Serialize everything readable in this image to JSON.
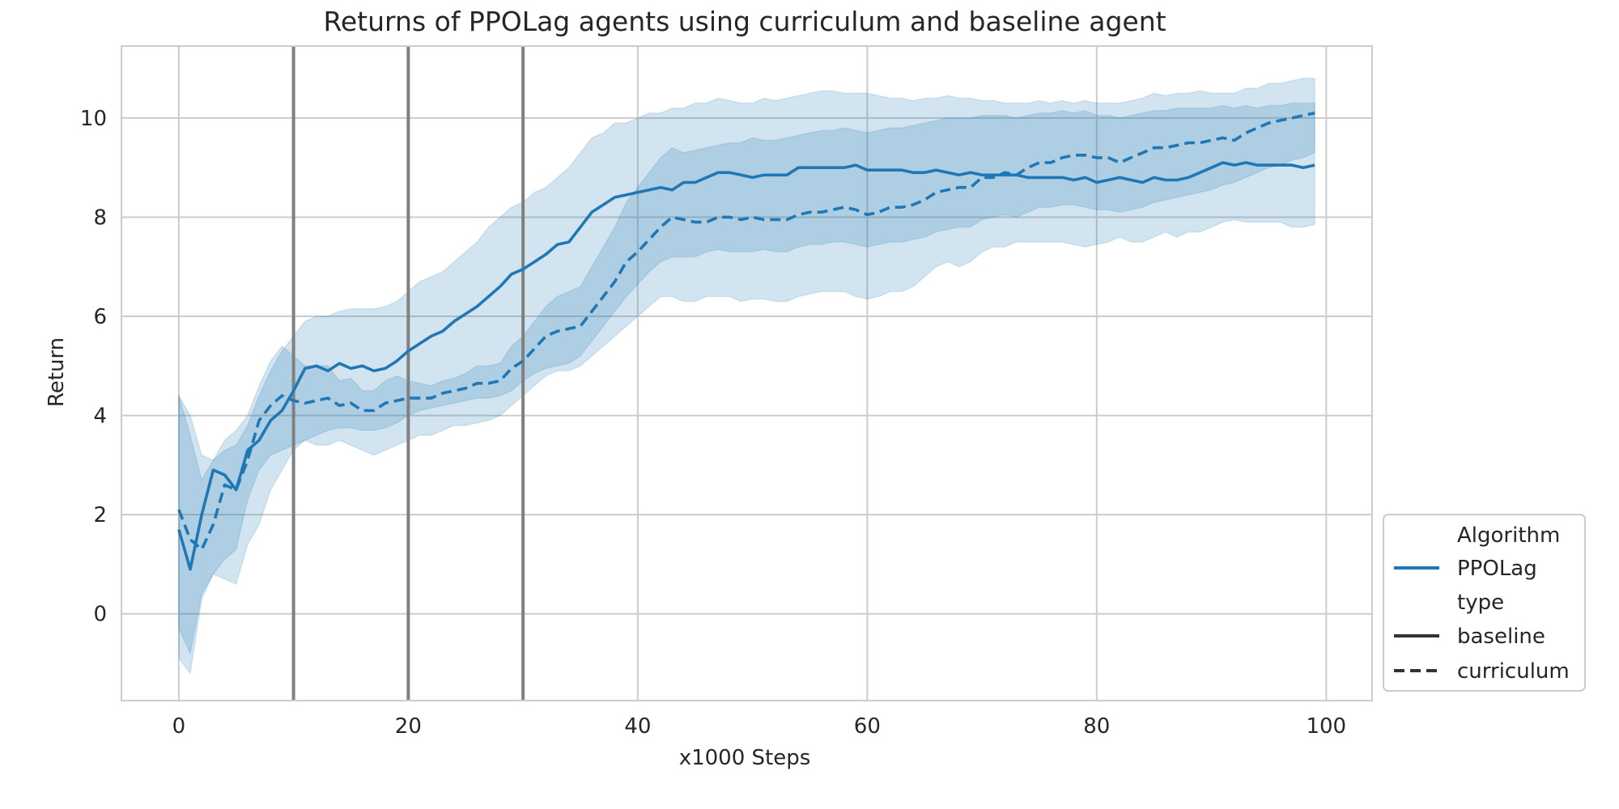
{
  "chart_data": {
    "type": "line",
    "title": "Returns of PPOLag agents using curriculum and baseline agent",
    "xlabel": "x1000 Steps",
    "ylabel": "Return",
    "xlim": [
      -5,
      104
    ],
    "ylim": [
      -1.75,
      11.45
    ],
    "xticks": [
      0,
      20,
      40,
      60,
      80,
      100
    ],
    "yticks": [
      0,
      2,
      4,
      6,
      8,
      10
    ],
    "grid": true,
    "vlines": [
      10,
      20,
      30
    ],
    "legend": {
      "position": "lower-right-outside",
      "entries": [
        {
          "label": "Algorithm",
          "style": "header"
        },
        {
          "label": "PPOLag",
          "style": "color",
          "color": "#1f77b4"
        },
        {
          "label": "type",
          "style": "header"
        },
        {
          "label": "baseline",
          "style": "solid",
          "color": "#333333"
        },
        {
          "label": "curriculum",
          "style": "dashed",
          "color": "#333333"
        }
      ]
    },
    "colors": {
      "line": "#1f77b4",
      "band": "#1f77b4",
      "vline": "#808080",
      "grid": "#cccccc"
    },
    "series": [
      {
        "name": "baseline",
        "dash": "solid",
        "x": [
          0,
          1,
          2,
          3,
          4,
          5,
          6,
          7,
          8,
          9,
          10,
          11,
          12,
          13,
          14,
          15,
          16,
          17,
          18,
          19,
          20,
          21,
          22,
          23,
          24,
          25,
          26,
          27,
          28,
          29,
          30,
          31,
          32,
          33,
          34,
          35,
          36,
          37,
          38,
          39,
          40,
          41,
          42,
          43,
          44,
          45,
          46,
          47,
          48,
          49,
          50,
          51,
          52,
          53,
          54,
          55,
          56,
          57,
          58,
          59,
          60,
          61,
          62,
          63,
          64,
          65,
          66,
          67,
          68,
          69,
          70,
          71,
          72,
          73,
          74,
          75,
          76,
          77,
          78,
          79,
          80,
          81,
          82,
          83,
          84,
          85,
          86,
          87,
          88,
          89,
          90,
          91,
          92,
          93,
          94,
          95,
          96,
          97,
          98,
          99
        ],
        "y": [
          1.7,
          0.9,
          2.0,
          2.9,
          2.8,
          2.5,
          3.3,
          3.5,
          3.9,
          4.1,
          4.5,
          4.95,
          5.0,
          4.9,
          5.05,
          4.95,
          5.0,
          4.9,
          4.95,
          5.1,
          5.3,
          5.45,
          5.6,
          5.7,
          5.9,
          6.05,
          6.2,
          6.4,
          6.6,
          6.85,
          6.95,
          7.1,
          7.25,
          7.45,
          7.5,
          7.8,
          8.1,
          8.25,
          8.4,
          8.45,
          8.5,
          8.55,
          8.6,
          8.55,
          8.7,
          8.7,
          8.8,
          8.9,
          8.9,
          8.85,
          8.8,
          8.85,
          8.85,
          8.85,
          9.0,
          9.0,
          9.0,
          9.0,
          9.0,
          9.05,
          8.95,
          8.95,
          8.95,
          8.95,
          8.9,
          8.9,
          8.95,
          8.9,
          8.85,
          8.9,
          8.85,
          8.85,
          8.85,
          8.85,
          8.8,
          8.8,
          8.8,
          8.8,
          8.75,
          8.8,
          8.7,
          8.75,
          8.8,
          8.75,
          8.7,
          8.8,
          8.75,
          8.75,
          8.8,
          8.9,
          9.0,
          9.1,
          9.05,
          9.1,
          9.05,
          9.05,
          9.05,
          9.05,
          9.0,
          9.05
        ],
        "lower": [
          -0.9,
          -1.2,
          0.3,
          0.8,
          0.7,
          0.6,
          1.4,
          1.8,
          2.5,
          2.9,
          3.3,
          3.5,
          3.4,
          3.4,
          3.5,
          3.4,
          3.3,
          3.2,
          3.3,
          3.4,
          3.5,
          3.6,
          3.6,
          3.7,
          3.8,
          3.8,
          3.85,
          3.9,
          4.0,
          4.2,
          4.4,
          4.6,
          4.8,
          4.9,
          4.9,
          5.0,
          5.2,
          5.4,
          5.6,
          5.8,
          6.0,
          6.2,
          6.4,
          6.4,
          6.3,
          6.3,
          6.4,
          6.4,
          6.4,
          6.3,
          6.35,
          6.35,
          6.3,
          6.3,
          6.4,
          6.45,
          6.5,
          6.5,
          6.5,
          6.4,
          6.35,
          6.4,
          6.5,
          6.5,
          6.6,
          6.8,
          7.0,
          7.1,
          7.0,
          7.1,
          7.3,
          7.4,
          7.4,
          7.5,
          7.5,
          7.5,
          7.5,
          7.5,
          7.45,
          7.4,
          7.45,
          7.5,
          7.6,
          7.5,
          7.5,
          7.6,
          7.7,
          7.6,
          7.7,
          7.7,
          7.8,
          7.9,
          7.95,
          7.9,
          7.9,
          7.9,
          7.9,
          7.8,
          7.8,
          7.85
        ],
        "upper": [
          4.4,
          4.0,
          3.2,
          3.1,
          3.3,
          3.4,
          3.8,
          4.4,
          4.9,
          5.3,
          5.6,
          5.9,
          6.0,
          6.0,
          6.1,
          6.15,
          6.15,
          6.15,
          6.2,
          6.3,
          6.5,
          6.7,
          6.8,
          6.9,
          7.1,
          7.3,
          7.5,
          7.8,
          8.0,
          8.2,
          8.3,
          8.5,
          8.6,
          8.8,
          9.0,
          9.3,
          9.6,
          9.7,
          9.9,
          9.9,
          10.0,
          10.1,
          10.1,
          10.2,
          10.2,
          10.3,
          10.3,
          10.4,
          10.35,
          10.3,
          10.3,
          10.4,
          10.35,
          10.4,
          10.45,
          10.5,
          10.55,
          10.55,
          10.5,
          10.5,
          10.5,
          10.45,
          10.4,
          10.4,
          10.35,
          10.4,
          10.4,
          10.45,
          10.4,
          10.4,
          10.35,
          10.35,
          10.3,
          10.3,
          10.3,
          10.35,
          10.3,
          10.35,
          10.3,
          10.35,
          10.3,
          10.3,
          10.3,
          10.35,
          10.4,
          10.5,
          10.45,
          10.5,
          10.5,
          10.55,
          10.5,
          10.5,
          10.5,
          10.6,
          10.6,
          10.7,
          10.7,
          10.75,
          10.8,
          10.8
        ]
      },
      {
        "name": "curriculum",
        "dash": "dashed",
        "x": [
          0,
          1,
          2,
          3,
          4,
          5,
          6,
          7,
          8,
          9,
          10,
          11,
          12,
          13,
          14,
          15,
          16,
          17,
          18,
          19,
          20,
          21,
          22,
          23,
          24,
          25,
          26,
          27,
          28,
          29,
          30,
          31,
          32,
          33,
          34,
          35,
          36,
          37,
          38,
          39,
          40,
          41,
          42,
          43,
          44,
          45,
          46,
          47,
          48,
          49,
          50,
          51,
          52,
          53,
          54,
          55,
          56,
          57,
          58,
          59,
          60,
          61,
          62,
          63,
          64,
          65,
          66,
          67,
          68,
          69,
          70,
          71,
          72,
          73,
          74,
          75,
          76,
          77,
          78,
          79,
          80,
          81,
          82,
          83,
          84,
          85,
          86,
          87,
          88,
          89,
          90,
          91,
          92,
          93,
          94,
          95,
          96,
          97,
          98,
          99
        ],
        "y": [
          2.1,
          1.5,
          1.3,
          1.8,
          2.6,
          2.5,
          3.1,
          3.9,
          4.2,
          4.4,
          4.3,
          4.25,
          4.3,
          4.35,
          4.2,
          4.25,
          4.1,
          4.1,
          4.25,
          4.3,
          4.35,
          4.35,
          4.35,
          4.45,
          4.5,
          4.55,
          4.65,
          4.65,
          4.7,
          4.95,
          5.1,
          5.35,
          5.6,
          5.7,
          5.75,
          5.8,
          6.1,
          6.4,
          6.7,
          7.1,
          7.3,
          7.55,
          7.8,
          8.0,
          7.95,
          7.9,
          7.9,
          8.0,
          8.0,
          7.95,
          8.0,
          7.95,
          7.95,
          7.95,
          8.05,
          8.1,
          8.1,
          8.15,
          8.2,
          8.15,
          8.05,
          8.1,
          8.2,
          8.2,
          8.25,
          8.35,
          8.5,
          8.55,
          8.6,
          8.6,
          8.8,
          8.8,
          8.9,
          8.85,
          9.0,
          9.1,
          9.1,
          9.2,
          9.25,
          9.25,
          9.2,
          9.2,
          9.1,
          9.2,
          9.3,
          9.4,
          9.4,
          9.45,
          9.5,
          9.5,
          9.55,
          9.6,
          9.55,
          9.7,
          9.8,
          9.9,
          9.95,
          10.0,
          10.05,
          10.1
        ],
        "lower": [
          -0.3,
          -0.8,
          0.4,
          0.8,
          1.1,
          1.3,
          2.3,
          2.9,
          3.2,
          3.3,
          3.4,
          3.5,
          3.6,
          3.7,
          3.75,
          3.75,
          3.7,
          3.7,
          3.75,
          3.85,
          4.0,
          4.1,
          4.15,
          4.2,
          4.25,
          4.3,
          4.35,
          4.35,
          4.4,
          4.5,
          4.7,
          4.85,
          4.95,
          5.0,
          5.05,
          5.2,
          5.5,
          5.8,
          6.1,
          6.4,
          6.65,
          6.9,
          7.1,
          7.2,
          7.2,
          7.2,
          7.3,
          7.35,
          7.3,
          7.3,
          7.3,
          7.35,
          7.3,
          7.3,
          7.4,
          7.45,
          7.45,
          7.5,
          7.5,
          7.45,
          7.4,
          7.45,
          7.5,
          7.5,
          7.55,
          7.6,
          7.7,
          7.75,
          7.8,
          7.8,
          7.95,
          8.0,
          8.05,
          8.0,
          8.1,
          8.2,
          8.2,
          8.25,
          8.25,
          8.2,
          8.15,
          8.15,
          8.1,
          8.15,
          8.2,
          8.3,
          8.35,
          8.4,
          8.45,
          8.5,
          8.55,
          8.65,
          8.7,
          8.8,
          8.9,
          9.0,
          9.05,
          9.15,
          9.2,
          9.3
        ],
        "upper": [
          4.4,
          3.6,
          2.7,
          3.1,
          3.5,
          3.7,
          4.0,
          4.6,
          5.1,
          5.4,
          5.2,
          5.0,
          5.0,
          5.0,
          4.7,
          4.75,
          4.5,
          4.5,
          4.7,
          4.8,
          4.7,
          4.65,
          4.6,
          4.7,
          4.75,
          4.85,
          5.0,
          5.0,
          5.05,
          5.4,
          5.6,
          5.9,
          6.2,
          6.4,
          6.5,
          6.6,
          7.0,
          7.4,
          7.8,
          8.3,
          8.6,
          8.9,
          9.2,
          9.4,
          9.3,
          9.35,
          9.4,
          9.45,
          9.5,
          9.5,
          9.6,
          9.55,
          9.55,
          9.6,
          9.65,
          9.7,
          9.75,
          9.75,
          9.8,
          9.75,
          9.7,
          9.75,
          9.8,
          9.8,
          9.85,
          9.9,
          9.95,
          10.0,
          10.0,
          10.0,
          10.05,
          10.05,
          10.05,
          10.0,
          10.05,
          10.1,
          10.1,
          10.15,
          10.1,
          10.15,
          10.05,
          10.05,
          10.0,
          10.05,
          10.1,
          10.15,
          10.15,
          10.2,
          10.2,
          10.2,
          10.2,
          10.25,
          10.2,
          10.25,
          10.2,
          10.25,
          10.25,
          10.3,
          10.3,
          10.3
        ]
      }
    ]
  }
}
